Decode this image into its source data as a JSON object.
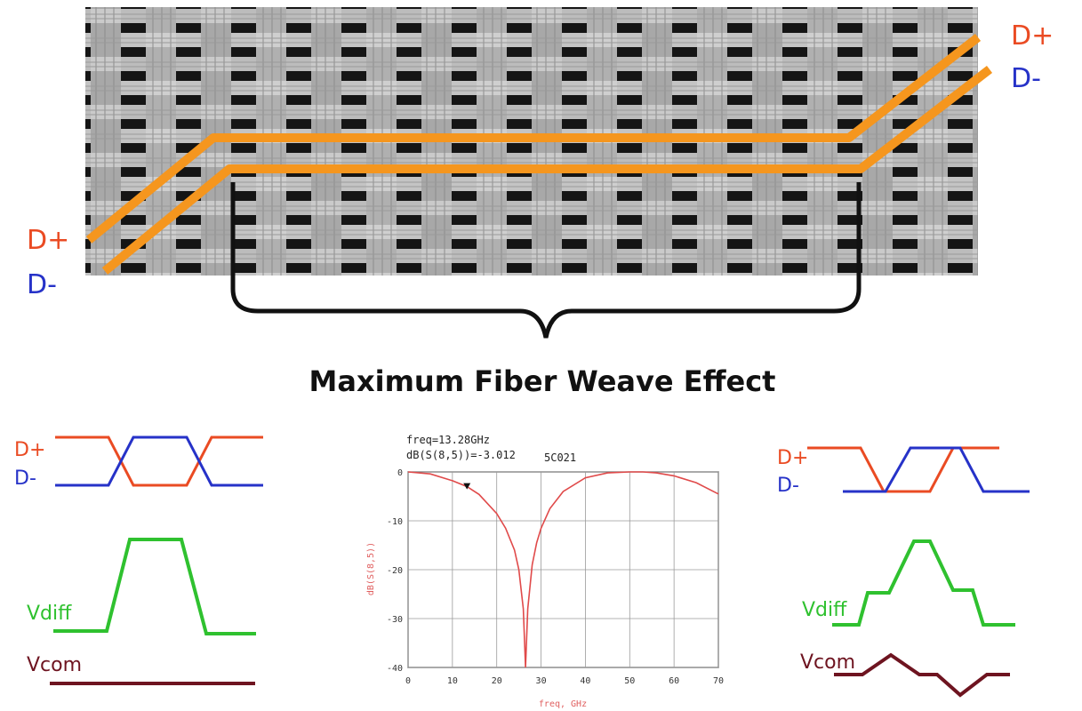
{
  "top": {
    "label_dplus": "D+",
    "label_dminus": "D-",
    "caption": "Maximum Fiber Weave Effect"
  },
  "left_waves": {
    "dplus": "D+",
    "dminus": "D-",
    "vdiff": "Vdiff",
    "vcom": "Vcom"
  },
  "right_waves": {
    "dplus": "D+",
    "dminus": "D-",
    "vdiff": "Vdiff",
    "vcom": "Vcom"
  },
  "plot": {
    "marker_line1": "freq=13.28GHz",
    "marker_line2": "dB(S(8,5))=-3.012",
    "marker_id": "5C021",
    "y_axis_label": "dB(S(8,5))",
    "x_axis_label": "freq, GHz"
  },
  "colors": {
    "trace": "#f5961e",
    "dplus": "#ea4b23",
    "dminus": "#2632c8",
    "vdiff": "#2fc12f",
    "vcom": "#6e1420",
    "plot_curve": "#e04a4a"
  },
  "chart_data": {
    "type": "line",
    "xlabel": "freq, GHz",
    "ylabel": "dB(S(8,5))",
    "xlim": [
      0,
      70
    ],
    "ylim": [
      -40,
      0
    ],
    "x_ticks": [
      "0",
      "10",
      "20",
      "30",
      "40",
      "50",
      "60",
      "70"
    ],
    "y_ticks": [
      "0",
      "-10",
      "-20",
      "-30",
      "-40"
    ],
    "series": [
      {
        "x": [
          0,
          5,
          10,
          13.28,
          16,
          20,
          22,
          24,
          25,
          26,
          26.5,
          27,
          28,
          29,
          30,
          32,
          35,
          40,
          45,
          50,
          53,
          56,
          60,
          65,
          70
        ],
        "y": [
          0,
          -0.4,
          -1.8,
          -3.0,
          -4.6,
          -8.5,
          -11.5,
          -16,
          -20,
          -28,
          -40,
          -28,
          -19,
          -14.5,
          -11.5,
          -7.5,
          -4,
          -1.2,
          -0.2,
          0,
          0,
          -0.2,
          -0.8,
          -2.2,
          -4.5
        ]
      }
    ],
    "markers": [
      {
        "x": 13.28,
        "y": -3.012
      }
    ]
  }
}
